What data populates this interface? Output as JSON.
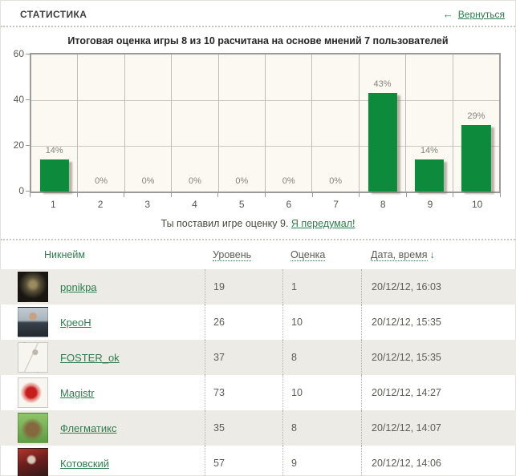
{
  "header": {
    "title": "СТАТИСТИКА",
    "back_label": "Вернуться",
    "back_arrow": "←"
  },
  "chart_data": {
    "type": "bar",
    "title": "Итоговая оценка игры 8 из 10 расчитана на основе мнений 7 пользователей",
    "categories": [
      "1",
      "2",
      "3",
      "4",
      "5",
      "6",
      "7",
      "8",
      "9",
      "10"
    ],
    "values": [
      14,
      0,
      0,
      0,
      0,
      0,
      0,
      43,
      14,
      29
    ],
    "value_labels": [
      "14%",
      "0%",
      "0%",
      "0%",
      "0%",
      "0%",
      "0%",
      "43%",
      "14%",
      "29%"
    ],
    "xlabel": "",
    "ylabel": "",
    "ylim": [
      0,
      60
    ],
    "yticks": [
      0,
      20,
      40,
      60
    ],
    "grid": true,
    "legend": "none",
    "bar_color": "#0E8A3C",
    "plot_bg": "#FBF9F2"
  },
  "note": {
    "text": "Ты поставил игре оценку 9.",
    "link_label": "Я передумал!"
  },
  "table": {
    "headers": [
      {
        "label": "Никнейм",
        "sortable": false
      },
      {
        "label": "Уровень",
        "sortable": true
      },
      {
        "label": "Оценка",
        "sortable": true
      },
      {
        "label": "Дата, время",
        "sortable": true,
        "sort_arrow": "↓"
      }
    ],
    "rows": [
      {
        "nickname": "ppnikpa",
        "level": "19",
        "rating": "1",
        "datetime": "20/12/12, 16:03",
        "avatar": "dark-goat-avatar"
      },
      {
        "nickname": "КреоН",
        "level": "26",
        "rating": "10",
        "datetime": "20/12/12, 15:35",
        "avatar": "man-in-suit-avatar"
      },
      {
        "nickname": "FOSTER_ok",
        "level": "37",
        "rating": "8",
        "datetime": "20/12/12, 15:35",
        "avatar": "pencil-sketch-avatar"
      },
      {
        "nickname": "Magistr",
        "level": "73",
        "rating": "10",
        "datetime": "20/12/12, 14:27",
        "avatar": "red-dragon-avatar"
      },
      {
        "nickname": "Флегматикс",
        "level": "35",
        "rating": "8",
        "datetime": "20/12/12, 14:07",
        "avatar": "sloth-green-avatar"
      },
      {
        "nickname": "Котовский",
        "level": "57",
        "rating": "9",
        "datetime": "20/12/12, 14:06",
        "avatar": "red-photo-avatar"
      }
    ]
  },
  "colors": {
    "accent_green": "#2E7D4F",
    "bar_green": "#0E8A3C",
    "row_alt": "#ECEBE5"
  }
}
